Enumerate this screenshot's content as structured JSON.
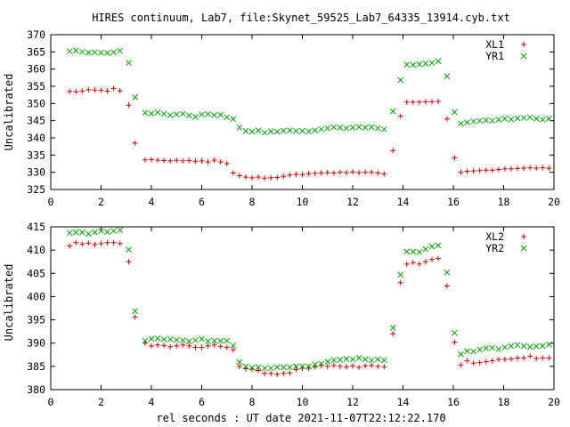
{
  "title": "HIRES continuum, Lab7, file:Skynet_59525_Lab7_64335_13914.cyb.txt",
  "xlabel": "rel seconds : UT date 2021-11-07T22:12:22.170",
  "colors": {
    "red": "#cc0000",
    "green": "#00a000"
  },
  "chart_data": [
    {
      "type": "scatter",
      "ylabel": "Uncalibrated",
      "xlim": [
        0,
        20
      ],
      "ylim": [
        325,
        370
      ],
      "xticks": [
        0,
        2,
        4,
        6,
        8,
        10,
        12,
        14,
        16,
        18,
        20
      ],
      "yticks": [
        325,
        330,
        335,
        340,
        345,
        350,
        355,
        360,
        365,
        370
      ],
      "grid": false,
      "legend_position": "top-right",
      "series": [
        {
          "name": "XL1",
          "marker": "plus",
          "color": "#cc0000",
          "x": [
            0.75,
            1.0,
            1.25,
            1.5,
            1.75,
            2.0,
            2.25,
            2.5,
            2.75,
            3.1,
            3.35,
            3.75,
            4.0,
            4.25,
            4.5,
            4.75,
            5.0,
            5.25,
            5.5,
            5.75,
            6.0,
            6.25,
            6.5,
            6.75,
            7.0,
            7.25,
            7.5,
            7.75,
            8.0,
            8.25,
            8.5,
            8.75,
            9.0,
            9.25,
            9.5,
            9.75,
            10.0,
            10.25,
            10.5,
            10.75,
            11.0,
            11.25,
            11.5,
            11.75,
            12.0,
            12.25,
            12.5,
            12.75,
            13.0,
            13.25,
            13.6,
            13.9,
            14.15,
            14.4,
            14.65,
            14.9,
            15.15,
            15.4,
            15.75,
            16.05,
            16.3,
            16.55,
            16.8,
            17.05,
            17.3,
            17.55,
            17.8,
            18.05,
            18.3,
            18.55,
            18.8,
            19.05,
            19.3,
            19.55,
            19.8
          ],
          "y": [
            353.5,
            353.4,
            353.6,
            354.0,
            353.9,
            353.8,
            353.6,
            354.4,
            353.7,
            349.5,
            338.5,
            333.6,
            333.7,
            333.5,
            333.4,
            333.3,
            333.5,
            333.3,
            333.4,
            333.2,
            333.3,
            333.0,
            333.5,
            333.0,
            332.5,
            329.8,
            329.0,
            328.6,
            328.4,
            328.6,
            328.3,
            328.4,
            328.5,
            328.8,
            329.2,
            329.4,
            329.3,
            329.6,
            329.7,
            329.8,
            329.9,
            329.8,
            330.0,
            329.9,
            330.1,
            329.9,
            330.0,
            330.0,
            329.8,
            329.5,
            336.3,
            346.3,
            350.4,
            350.4,
            350.4,
            350.5,
            350.5,
            350.6,
            345.5,
            334.2,
            330.0,
            330.3,
            330.4,
            330.5,
            330.6,
            330.6,
            330.8,
            331.0,
            331.0,
            331.1,
            331.2,
            331.3,
            331.2,
            331.3,
            331.2
          ]
        },
        {
          "name": "YR1",
          "marker": "cross",
          "color": "#00a000",
          "x": [
            0.75,
            1.0,
            1.25,
            1.5,
            1.75,
            2.0,
            2.25,
            2.5,
            2.75,
            3.1,
            3.35,
            3.75,
            4.0,
            4.25,
            4.5,
            4.75,
            5.0,
            5.25,
            5.5,
            5.75,
            6.0,
            6.25,
            6.5,
            6.75,
            7.0,
            7.25,
            7.5,
            7.75,
            8.0,
            8.25,
            8.5,
            8.75,
            9.0,
            9.25,
            9.5,
            9.75,
            10.0,
            10.25,
            10.5,
            10.75,
            11.0,
            11.25,
            11.5,
            11.75,
            12.0,
            12.25,
            12.5,
            12.75,
            13.0,
            13.25,
            13.6,
            13.9,
            14.15,
            14.4,
            14.65,
            14.9,
            15.15,
            15.4,
            15.75,
            16.05,
            16.3,
            16.55,
            16.8,
            17.05,
            17.3,
            17.55,
            17.8,
            18.05,
            18.3,
            18.55,
            18.8,
            19.05,
            19.3,
            19.55,
            19.8
          ],
          "y": [
            365.2,
            365.4,
            365.0,
            364.8,
            364.9,
            364.8,
            364.7,
            364.9,
            365.3,
            361.8,
            351.8,
            347.3,
            347.1,
            347.4,
            347.0,
            346.6,
            346.8,
            347.0,
            346.5,
            346.1,
            346.8,
            346.9,
            346.6,
            346.7,
            346.0,
            345.5,
            343.0,
            342.0,
            341.8,
            342.2,
            341.5,
            341.9,
            341.8,
            342.1,
            342.2,
            342.0,
            342.0,
            341.9,
            342.2,
            342.5,
            342.8,
            343.1,
            343.0,
            342.8,
            343.0,
            343.2,
            343.0,
            343.1,
            342.8,
            342.5,
            347.7,
            356.8,
            361.3,
            361.2,
            361.4,
            361.6,
            361.8,
            362.3,
            357.9,
            347.5,
            344.2,
            344.5,
            344.8,
            345.0,
            345.1,
            345.0,
            345.3,
            345.6,
            345.4,
            345.7,
            345.8,
            346.0,
            345.6,
            345.3,
            345.6
          ]
        }
      ]
    },
    {
      "type": "scatter",
      "ylabel": "Uncalibrated",
      "xlim": [
        0,
        20
      ],
      "ylim": [
        380,
        415
      ],
      "xticks": [
        0,
        2,
        4,
        6,
        8,
        10,
        12,
        14,
        16,
        18,
        20
      ],
      "yticks": [
        380,
        385,
        390,
        395,
        400,
        405,
        410,
        415
      ],
      "grid": false,
      "legend_position": "top-right",
      "series": [
        {
          "name": "XL2",
          "marker": "plus",
          "color": "#cc0000",
          "x": [
            0.75,
            1.0,
            1.25,
            1.5,
            1.75,
            2.0,
            2.25,
            2.5,
            2.75,
            3.1,
            3.35,
            3.75,
            4.0,
            4.25,
            4.5,
            4.75,
            5.0,
            5.25,
            5.5,
            5.75,
            6.0,
            6.25,
            6.5,
            6.75,
            7.0,
            7.25,
            7.5,
            7.75,
            8.0,
            8.25,
            8.5,
            8.75,
            9.0,
            9.25,
            9.5,
            9.75,
            10.0,
            10.25,
            10.5,
            10.75,
            11.0,
            11.25,
            11.5,
            11.75,
            12.0,
            12.25,
            12.5,
            12.75,
            13.0,
            13.25,
            13.6,
            13.9,
            14.15,
            14.4,
            14.65,
            14.9,
            15.15,
            15.4,
            15.75,
            16.05,
            16.3,
            16.55,
            16.8,
            17.05,
            17.3,
            17.55,
            17.8,
            18.05,
            18.3,
            18.55,
            18.8,
            19.05,
            19.3,
            19.55,
            19.8
          ],
          "y": [
            410.9,
            411.6,
            411.3,
            411.5,
            411.2,
            411.4,
            411.6,
            411.6,
            411.4,
            407.5,
            395.6,
            390.0,
            389.4,
            389.6,
            389.5,
            389.2,
            389.4,
            389.6,
            389.4,
            389.1,
            389.1,
            389.4,
            389.6,
            389.3,
            389.1,
            388.6,
            385.0,
            384.5,
            384.4,
            384.1,
            383.5,
            383.5,
            383.3,
            383.5,
            383.6,
            384.3,
            384.6,
            384.6,
            384.9,
            385.2,
            385.0,
            385.2,
            385.0,
            384.9,
            385.1,
            384.8,
            385.1,
            385.2,
            385.0,
            384.9,
            392.0,
            403.0,
            407.0,
            407.3,
            407.0,
            407.5,
            408.0,
            408.2,
            402.3,
            390.2,
            385.3,
            386.2,
            385.7,
            385.8,
            386.0,
            386.2,
            386.5,
            386.5,
            386.6,
            386.8,
            386.8,
            387.2,
            386.7,
            386.8,
            386.8
          ]
        },
        {
          "name": "YR2",
          "marker": "cross",
          "color": "#00a000",
          "x": [
            0.75,
            1.0,
            1.25,
            1.5,
            1.75,
            2.0,
            2.25,
            2.5,
            2.75,
            3.1,
            3.35,
            3.75,
            4.0,
            4.25,
            4.5,
            4.75,
            5.0,
            5.25,
            5.5,
            5.75,
            6.0,
            6.25,
            6.5,
            6.75,
            7.0,
            7.25,
            7.5,
            7.75,
            8.0,
            8.25,
            8.5,
            8.75,
            9.0,
            9.25,
            9.5,
            9.75,
            10.0,
            10.25,
            10.5,
            10.75,
            11.0,
            11.25,
            11.5,
            11.75,
            12.0,
            12.25,
            12.5,
            12.75,
            13.0,
            13.25,
            13.6,
            13.9,
            14.15,
            14.4,
            14.65,
            14.9,
            15.15,
            15.4,
            15.75,
            16.05,
            16.3,
            16.55,
            16.8,
            17.05,
            17.3,
            17.55,
            17.8,
            18.05,
            18.3,
            18.55,
            18.8,
            19.05,
            19.3,
            19.55,
            19.8
          ],
          "y": [
            413.7,
            413.8,
            413.8,
            413.5,
            413.8,
            414.1,
            413.9,
            414.1,
            414.3,
            410.1,
            396.9,
            390.5,
            390.9,
            391.0,
            390.8,
            390.8,
            390.7,
            390.6,
            390.4,
            390.6,
            390.9,
            390.4,
            390.5,
            390.5,
            390.5,
            389.5,
            385.9,
            385.0,
            384.7,
            384.8,
            384.6,
            384.6,
            384.8,
            384.8,
            384.8,
            385.0,
            385.0,
            385.0,
            385.4,
            385.6,
            386.0,
            386.3,
            386.4,
            386.6,
            386.5,
            386.8,
            386.5,
            386.3,
            386.5,
            386.3,
            393.3,
            404.7,
            409.7,
            409.7,
            409.6,
            410.2,
            410.8,
            411.0,
            405.2,
            392.2,
            387.6,
            388.3,
            388.2,
            388.6,
            388.9,
            389.0,
            388.7,
            389.1,
            389.4,
            389.6,
            389.4,
            389.2,
            389.3,
            389.4,
            389.7
          ]
        }
      ]
    }
  ]
}
